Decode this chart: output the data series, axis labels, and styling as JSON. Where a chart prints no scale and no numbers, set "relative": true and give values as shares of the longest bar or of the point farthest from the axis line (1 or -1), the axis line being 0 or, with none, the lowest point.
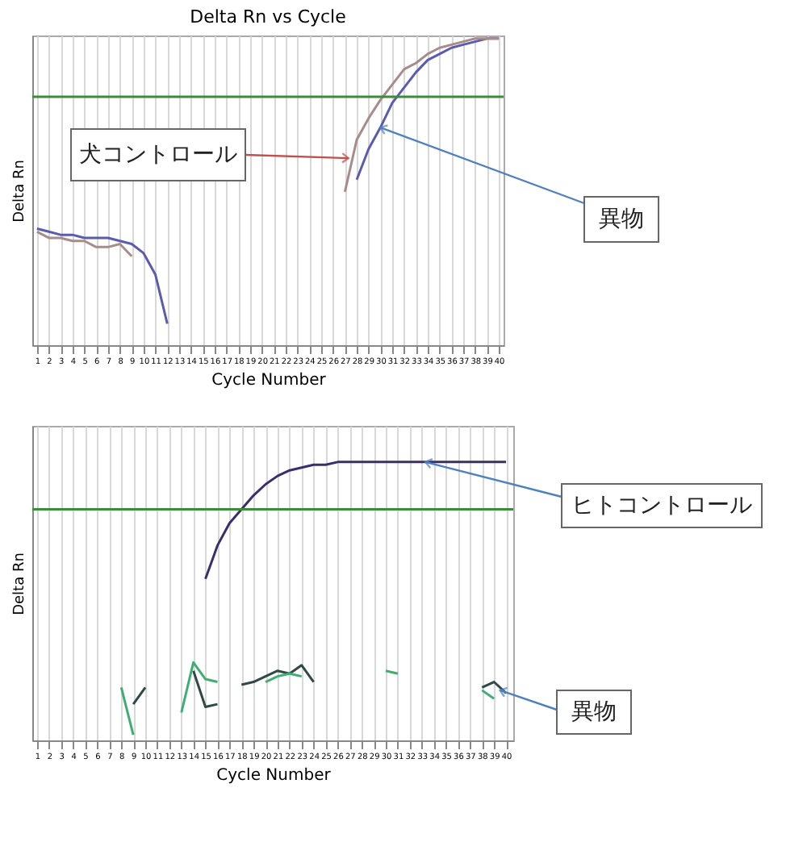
{
  "chart_data": [
    {
      "type": "line",
      "title": "Delta Rn vs Cycle",
      "xlabel": "Cycle Number",
      "ylabel": "Delta Rn",
      "relative": true,
      "grid": "x",
      "x": [
        1,
        2,
        3,
        4,
        5,
        6,
        7,
        8,
        9,
        10,
        11,
        12,
        13,
        14,
        15,
        16,
        17,
        18,
        19,
        20,
        21,
        22,
        23,
        24,
        25,
        26,
        27,
        28,
        29,
        30,
        31,
        32,
        33,
        34,
        35,
        36,
        37,
        38,
        39,
        40
      ],
      "xlim": [
        0.6,
        40.4
      ],
      "xticks": [
        1,
        2,
        3,
        4,
        5,
        6,
        7,
        8,
        9,
        10,
        11,
        12,
        13,
        14,
        15,
        16,
        17,
        18,
        19,
        20,
        21,
        22,
        23,
        24,
        25,
        26,
        27,
        28,
        29,
        30,
        31,
        32,
        33,
        34,
        35,
        36,
        37,
        38,
        39,
        40
      ],
      "series": [
        {
          "color": "#5b5bb0",
          "values": [
            0.38,
            0.37,
            0.36,
            0.36,
            0.35,
            0.35,
            0.35,
            0.34,
            0.33,
            0.3,
            0.23,
            0.07,
            null,
            null,
            null,
            null,
            null,
            null,
            null,
            null,
            null,
            null,
            null,
            null,
            null,
            null,
            null,
            0.54,
            0.64,
            0.71,
            0.79,
            0.84,
            0.89,
            0.93,
            0.95,
            0.97,
            0.98,
            0.99,
            1.0,
            1.0
          ]
        },
        {
          "color": "#a88c8c",
          "values": [
            0.37,
            0.35,
            0.35,
            0.34,
            0.34,
            0.32,
            0.32,
            0.33,
            0.29,
            null,
            null,
            null,
            null,
            null,
            null,
            null,
            null,
            null,
            null,
            null,
            null,
            null,
            null,
            null,
            null,
            null,
            0.5,
            0.67,
            0.74,
            0.8,
            0.85,
            0.9,
            0.92,
            0.95,
            0.97,
            0.98,
            0.99,
            1.0,
            1.0,
            1.0
          ]
        }
      ],
      "ref_lines": [
        {
          "axis": "y",
          "value": 0.81,
          "color": "#3c8c3c"
        }
      ],
      "annotations": [
        {
          "text": "犬コントロール",
          "x": 27.3,
          "y": 0.61
        },
        {
          "text": "異物",
          "x": 30,
          "y": 0.71
        }
      ]
    },
    {
      "type": "line",
      "xlabel": "Cycle Number",
      "ylabel": "Delta Rn",
      "relative": true,
      "grid": "x",
      "xlim": [
        0.6,
        40.6
      ],
      "xticks": [
        1,
        2,
        3,
        4,
        5,
        6,
        7,
        8,
        9,
        10,
        11,
        12,
        13,
        14,
        15,
        16,
        17,
        18,
        19,
        20,
        21,
        22,
        23,
        24,
        25,
        26,
        27,
        28,
        29,
        30,
        31,
        32,
        33,
        34,
        35,
        36,
        37,
        38,
        39,
        40
      ],
      "series": [
        {
          "color": "#3b2d6e",
          "x": [
            15,
            16,
            17,
            18,
            19,
            20,
            21,
            22,
            23,
            24,
            25,
            26,
            27,
            28,
            29,
            30,
            31,
            32,
            33,
            34,
            35,
            36,
            37,
            38,
            39,
            40
          ],
          "values": [
            0.58,
            0.7,
            0.78,
            0.83,
            0.88,
            0.92,
            0.95,
            0.97,
            0.98,
            0.99,
            0.99,
            1.0,
            1.0,
            1.0,
            1.0,
            1.0,
            1.0,
            1.0,
            1.0,
            1.0,
            1.0,
            1.0,
            1.0,
            1.0,
            1.0,
            1.0
          ]
        },
        {
          "color": "#2e4a48",
          "x": [
            9,
            10,
            11,
            12,
            13,
            14,
            15,
            16,
            17,
            18,
            19,
            20,
            21,
            22,
            23,
            24,
            25,
            26,
            27,
            28,
            29,
            30,
            31,
            32,
            33,
            34,
            35,
            36,
            37,
            38,
            39,
            40
          ],
          "values": [
            0.13,
            0.19,
            null,
            null,
            null,
            0.25,
            0.12,
            0.13,
            null,
            0.2,
            0.21,
            0.23,
            0.25,
            0.24,
            0.27,
            0.21,
            null,
            null,
            null,
            null,
            null,
            null,
            null,
            null,
            null,
            null,
            null,
            null,
            null,
            0.19,
            0.21,
            0.17
          ]
        },
        {
          "color": "#3fae72",
          "x": [
            8,
            9,
            10,
            11,
            12,
            13,
            14,
            15,
            16,
            17,
            18,
            19,
            20,
            21,
            22,
            23,
            24,
            25,
            26,
            27,
            28,
            29,
            30,
            31,
            32,
            33,
            34,
            35,
            36,
            37,
            38,
            39
          ],
          "values": [
            0.19,
            0.02,
            null,
            null,
            null,
            0.1,
            0.28,
            0.22,
            0.21,
            null,
            null,
            null,
            0.21,
            0.23,
            0.24,
            0.23,
            null,
            null,
            null,
            null,
            null,
            null,
            0.25,
            0.24,
            null,
            null,
            null,
            null,
            null,
            null,
            0.18,
            0.15
          ]
        }
      ],
      "ref_lines": [
        {
          "axis": "y",
          "value": 0.83,
          "color": "#3c8c3c"
        }
      ],
      "annotations": [
        {
          "text": "ヒトコントロール",
          "x": 33.3,
          "y": 1.0
        },
        {
          "text": "異物",
          "x": 39.5,
          "y": 0.18
        }
      ]
    }
  ]
}
